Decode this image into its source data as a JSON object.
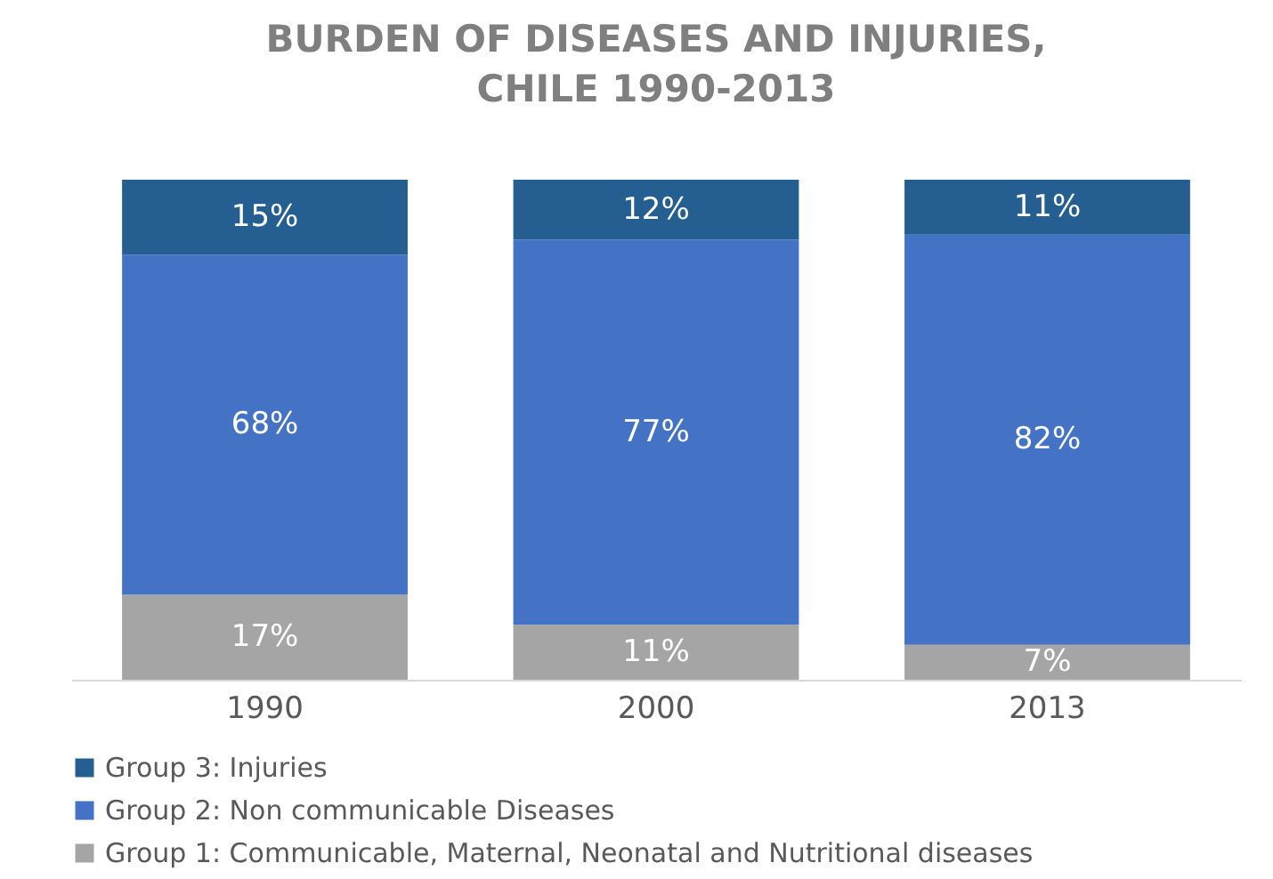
{
  "chart_data": {
    "type": "bar",
    "title": "BURDEN OF DISEASES AND INJURIES, CHILE 1990-2013",
    "categories": [
      "1990",
      "2000",
      "2013"
    ],
    "stacked": true,
    "ylim": [
      0,
      100
    ],
    "tick_labels": "x",
    "legend": "bottom",
    "series": [
      {
        "name": "Group 1: Communicable, Maternal, Neonatal and Nutritional diseases",
        "color": "#a5a5a5",
        "values": [
          17,
          11,
          7
        ],
        "value_labels": [
          "17%",
          "11%",
          "7%"
        ]
      },
      {
        "name": "Group 2: Non communicable Diseases",
        "color": "#4472c4",
        "values": [
          68,
          77,
          82
        ],
        "value_labels": [
          "68%",
          "77%",
          "82%"
        ]
      },
      {
        "name": "Group 3: Injuries",
        "color": "#255e91",
        "values": [
          15,
          12,
          11
        ],
        "value_labels": [
          "15%",
          "12%",
          "11%"
        ]
      }
    ]
  }
}
